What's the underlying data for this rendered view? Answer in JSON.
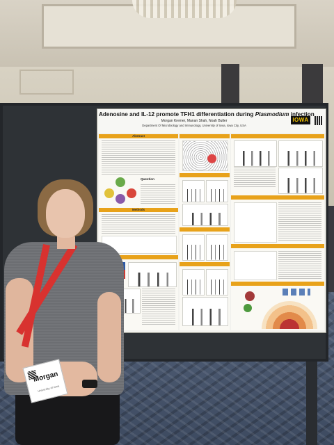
{
  "poster": {
    "title_prefix": "Adenosine and IL-12 promote TFH1 differentiation during ",
    "title_italic": "Plasmodium",
    "title_suffix": " infection",
    "authors": "Morgan Kremer, Manan Shah, Noah Butler",
    "department": "Department Of Microbiology and Immunology, University of Iowa, Iowa City, USA",
    "logo_text": "IOWA",
    "sections": {
      "abstract": "Abstract",
      "methods": "Methods",
      "question": "Question"
    }
  },
  "badge": {
    "name": "Morgan",
    "org": "University of Iowa"
  },
  "colors": {
    "poster_band": "#e8a21a",
    "lanyard": "#d8322f",
    "shirt": "#6c6e72",
    "board": "#2e3236"
  }
}
